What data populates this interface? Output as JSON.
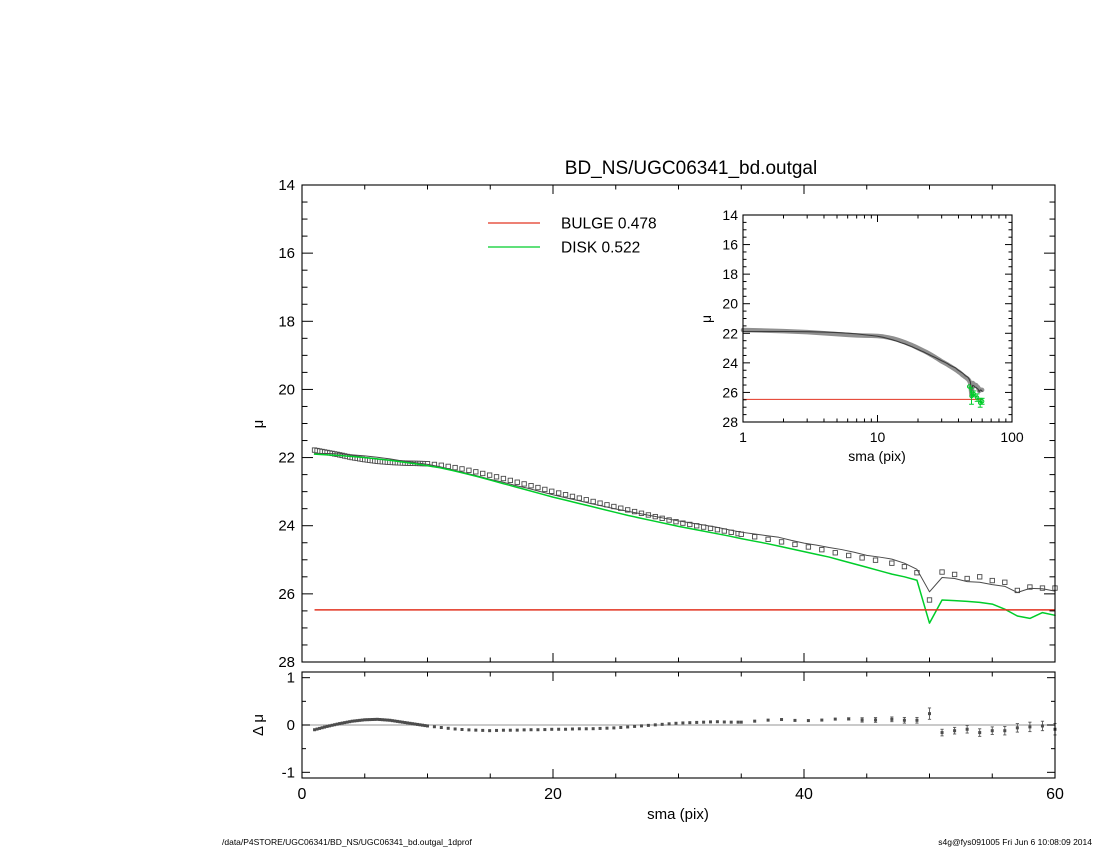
{
  "title": "BD_NS/UGC06341_bd.outgal",
  "legend": {
    "bulge_label": "BULGE  0.478",
    "disk_label": "DISK  0.522"
  },
  "footer": {
    "left": "/data/P4STORE/UGC06341/BD_NS/UGC06341_bd.outgal_1dprof",
    "right": "s4g@fys091005  Fri Jun  6 10:08:09 2014"
  },
  "colors": {
    "bulge": "#e23422",
    "disk": "#00cd2a",
    "data": "#4a4a4a",
    "model": "#4a4a4a",
    "data_band": "#909090",
    "zero_line": "#aaaaaa",
    "frame": "#000000"
  },
  "chart_data": {
    "type": "line",
    "panels": [
      {
        "id": "main",
        "title": "BD_NS/UGC06341_bd.outgal",
        "xlabel": "",
        "ylabel": "μ",
        "xscale": "linear",
        "xlim": [
          0,
          60
        ],
        "ylim": [
          14,
          28
        ],
        "y_inverted": true,
        "xticks": [
          0,
          20,
          40,
          60
        ],
        "xminor_step": 5,
        "yticks": [
          14,
          16,
          18,
          20,
          22,
          24,
          26,
          28
        ],
        "yminor_step": 0.5,
        "grid": false,
        "legend_position": "top-center"
      },
      {
        "id": "inset",
        "title": "",
        "xlabel": "sma (pix)",
        "ylabel": "μ",
        "xscale": "log",
        "xlim": [
          1,
          100
        ],
        "ylim": [
          14,
          28
        ],
        "y_inverted": true,
        "xticks": [
          1,
          10,
          100
        ],
        "yticks": [
          14,
          16,
          18,
          20,
          22,
          24,
          26,
          28
        ],
        "yminor_step": 0.5,
        "grid": false
      },
      {
        "id": "residual",
        "title": "",
        "xlabel": "sma (pix)",
        "ylabel": "Δ μ",
        "xscale": "linear",
        "xlim": [
          0,
          60
        ],
        "ylim": [
          -1.12,
          1.12
        ],
        "xticks": [
          0,
          20,
          40,
          60
        ],
        "xminor_step": 5,
        "yticks": [
          -1,
          0,
          1
        ],
        "yminor_step": 0.5,
        "zero_line": true,
        "grid": false
      }
    ],
    "series": {
      "sma": [
        1,
        2,
        3,
        4,
        5,
        6,
        7,
        8,
        9,
        10,
        11,
        12,
        13,
        14,
        15,
        16,
        17,
        18,
        19,
        20,
        21,
        22,
        23,
        24,
        25,
        26,
        27,
        28,
        29,
        30,
        31,
        32,
        33,
        34,
        35,
        36,
        37,
        38,
        39,
        40,
        41,
        42,
        43,
        44,
        45,
        46,
        47,
        48,
        49,
        50,
        51,
        52,
        53,
        54,
        55,
        56,
        57,
        58,
        59,
        60
      ],
      "data_mu": [
        21.78,
        21.85,
        21.92,
        22.0,
        22.06,
        22.11,
        22.14,
        22.16,
        22.17,
        22.18,
        22.22,
        22.28,
        22.35,
        22.43,
        22.52,
        22.61,
        22.71,
        22.8,
        22.9,
        23.0,
        23.09,
        23.18,
        23.27,
        23.36,
        23.45,
        23.54,
        23.63,
        23.72,
        23.81,
        23.9,
        23.97,
        24.04,
        24.11,
        24.18,
        24.25,
        24.32,
        24.39,
        24.46,
        24.53,
        24.6,
        24.67,
        24.75,
        24.84,
        24.9,
        24.97,
        25.03,
        25.1,
        25.2,
        25.38,
        26.18,
        25.36,
        25.43,
        25.55,
        25.5,
        25.61,
        25.66,
        25.9,
        25.8,
        25.83,
        25.83
      ],
      "model_mu": [
        21.88,
        21.88,
        21.89,
        21.92,
        21.95,
        21.99,
        22.04,
        22.1,
        22.15,
        22.2,
        22.27,
        22.36,
        22.45,
        22.54,
        22.64,
        22.72,
        22.82,
        22.9,
        23.0,
        23.09,
        23.18,
        23.26,
        23.35,
        23.43,
        23.51,
        23.58,
        23.65,
        23.72,
        23.79,
        23.86,
        23.92,
        23.98,
        24.04,
        24.12,
        24.19,
        24.24,
        24.29,
        24.34,
        24.43,
        24.51,
        24.57,
        24.64,
        24.7,
        24.78,
        24.87,
        24.92,
        24.98,
        25.1,
        25.28,
        25.94,
        25.52,
        25.55,
        25.64,
        25.66,
        25.73,
        25.78,
        25.96,
        25.84,
        25.85,
        25.92
      ],
      "disk_mu": [
        21.9,
        21.92,
        21.94,
        21.97,
        22.0,
        22.04,
        22.08,
        22.13,
        22.18,
        22.24,
        22.3,
        22.38,
        22.47,
        22.56,
        22.66,
        22.76,
        22.86,
        22.96,
        23.06,
        23.16,
        23.25,
        23.34,
        23.43,
        23.52,
        23.61,
        23.7,
        23.78,
        23.86,
        23.94,
        24.02,
        24.09,
        24.16,
        24.23,
        24.3,
        24.38,
        24.45,
        24.52,
        24.6,
        24.68,
        24.76,
        24.84,
        24.92,
        25.02,
        25.12,
        25.22,
        25.32,
        25.42,
        25.5,
        25.6,
        26.86,
        26.18,
        26.2,
        26.22,
        26.25,
        26.3,
        26.45,
        26.65,
        26.72,
        26.55,
        26.63
      ],
      "bulge_mu": 26.47,
      "residual_dmu": [
        -0.1,
        -0.03,
        0.03,
        0.08,
        0.11,
        0.12,
        0.1,
        0.06,
        0.02,
        -0.02,
        -0.05,
        -0.08,
        -0.1,
        -0.11,
        -0.12,
        -0.11,
        -0.11,
        -0.1,
        -0.1,
        -0.09,
        -0.09,
        -0.08,
        -0.08,
        -0.07,
        -0.06,
        -0.04,
        -0.02,
        0.0,
        0.02,
        0.04,
        0.05,
        0.06,
        0.07,
        0.06,
        0.06,
        0.08,
        0.1,
        0.12,
        0.1,
        0.09,
        0.1,
        0.11,
        0.14,
        0.12,
        0.1,
        0.11,
        0.12,
        0.1,
        0.1,
        0.24,
        -0.16,
        -0.12,
        -0.09,
        -0.16,
        -0.12,
        -0.12,
        -0.06,
        -0.04,
        -0.02,
        -0.09
      ],
      "residual_err": [
        0,
        0,
        0,
        0,
        0,
        0,
        0,
        0,
        0,
        0,
        0,
        0,
        0,
        0,
        0,
        0,
        0,
        0,
        0,
        0,
        0,
        0,
        0,
        0,
        0,
        0,
        0,
        0,
        0,
        0,
        0,
        0,
        0,
        0,
        0,
        0,
        0,
        0,
        0,
        0,
        0,
        0,
        0,
        0.04,
        0.05,
        0.05,
        0.05,
        0.06,
        0.06,
        0.12,
        0.07,
        0.07,
        0.08,
        0.08,
        0.08,
        0.09,
        0.09,
        0.1,
        0.1,
        0.12
      ],
      "inset_disk_points": {
        "sma": [
          48,
          50,
          52,
          55,
          58,
          60
        ],
        "mu": [
          25.6,
          26.25,
          26.1,
          26.35,
          26.7,
          26.6
        ],
        "err": [
          0,
          0.55,
          0.2,
          0.25,
          0.3,
          0.2
        ]
      }
    }
  }
}
